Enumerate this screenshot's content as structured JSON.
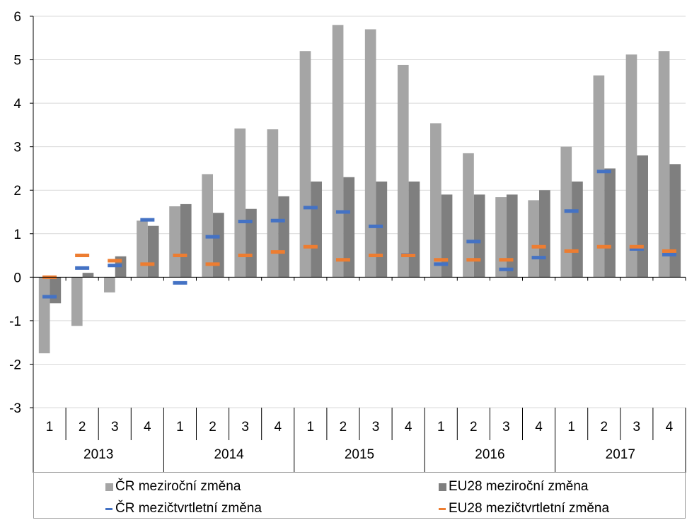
{
  "chart_data": {
    "type": "bar",
    "ylim": [
      -3,
      6
    ],
    "yticks": [
      -3,
      -2,
      -1,
      0,
      1,
      2,
      3,
      4,
      5,
      6
    ],
    "grid": true,
    "legend_position": "bottom",
    "quarters": [
      "1",
      "2",
      "3",
      "4",
      "1",
      "2",
      "3",
      "4",
      "1",
      "2",
      "3",
      "4",
      "1",
      "2",
      "3",
      "4",
      "1",
      "2",
      "3",
      "4"
    ],
    "years": [
      "2013",
      "2014",
      "2015",
      "2016",
      "2017"
    ],
    "series": [
      {
        "name": "ČR meziroční změna",
        "kind": "bar",
        "color": "#a5a5a5",
        "values": [
          -1.75,
          -1.12,
          -0.35,
          1.3,
          1.63,
          2.37,
          3.42,
          3.4,
          5.2,
          5.8,
          5.7,
          4.88,
          3.54,
          2.85,
          1.84,
          1.77,
          3.0,
          4.64,
          5.12,
          5.2
        ]
      },
      {
        "name": "EU28 meziroční změna",
        "kind": "bar",
        "color": "#7f7f7f",
        "values": [
          -0.6,
          0.1,
          0.48,
          1.18,
          1.68,
          1.48,
          1.57,
          1.86,
          2.2,
          2.3,
          2.2,
          2.2,
          1.9,
          1.9,
          1.9,
          2.0,
          2.2,
          2.5,
          2.8,
          2.6
        ]
      },
      {
        "name": "ČR mezičtvrtletní změna",
        "kind": "marker",
        "color": "#4472c4",
        "values": [
          -0.45,
          0.21,
          0.27,
          1.32,
          -0.13,
          0.93,
          1.28,
          1.3,
          1.6,
          1.5,
          1.17,
          0.51,
          0.3,
          0.82,
          0.18,
          0.45,
          1.52,
          2.43,
          0.65,
          0.52
        ]
      },
      {
        "name": "EU28 mezičtvrtletní změna",
        "kind": "marker",
        "color": "#ed7d31",
        "values": [
          0.0,
          0.5,
          0.38,
          0.3,
          0.5,
          0.3,
          0.5,
          0.58,
          0.7,
          0.4,
          0.5,
          0.5,
          0.4,
          0.4,
          0.4,
          0.7,
          0.6,
          0.7,
          0.7,
          0.6
        ]
      }
    ]
  }
}
